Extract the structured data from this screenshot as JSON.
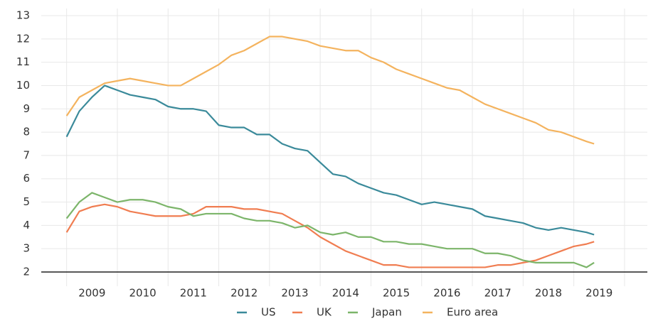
{
  "chart_data": {
    "type": "line",
    "x": [
      2009.0,
      2009.25,
      2009.5,
      2009.75,
      2010.0,
      2010.25,
      2010.5,
      2010.75,
      2011.0,
      2011.25,
      2011.5,
      2011.75,
      2012.0,
      2012.25,
      2012.5,
      2012.75,
      2013.0,
      2013.25,
      2013.5,
      2013.75,
      2014.0,
      2014.25,
      2014.5,
      2014.75,
      2015.0,
      2015.25,
      2015.5,
      2015.75,
      2016.0,
      2016.25,
      2016.5,
      2016.75,
      2017.0,
      2017.25,
      2017.5,
      2017.75,
      2018.0,
      2018.25,
      2018.5,
      2018.75,
      2019.0,
      2019.25,
      2019.4
    ],
    "series": [
      {
        "name": "US",
        "color": "#3a8a9a",
        "values": [
          7.8,
          8.9,
          9.5,
          10.0,
          9.8,
          9.6,
          9.5,
          9.4,
          9.1,
          9.0,
          9.0,
          8.9,
          8.3,
          8.2,
          8.2,
          7.9,
          7.9,
          7.5,
          7.3,
          7.2,
          6.7,
          6.2,
          6.1,
          5.8,
          5.6,
          5.4,
          5.3,
          5.1,
          4.9,
          5.0,
          4.9,
          4.8,
          4.7,
          4.4,
          4.3,
          4.2,
          4.1,
          3.9,
          3.8,
          3.9,
          3.8,
          3.7,
          3.6
        ]
      },
      {
        "name": "UK",
        "color": "#f07d51",
        "values": [
          3.7,
          4.6,
          4.8,
          4.9,
          4.8,
          4.6,
          4.5,
          4.4,
          4.4,
          4.4,
          4.5,
          4.8,
          4.8,
          4.8,
          4.7,
          4.7,
          4.6,
          4.5,
          4.2,
          3.9,
          3.5,
          3.2,
          2.9,
          2.7,
          2.5,
          2.3,
          2.3,
          2.2,
          2.2,
          2.2,
          2.2,
          2.2,
          2.2,
          2.2,
          2.3,
          2.3,
          2.4,
          2.5,
          2.7,
          2.9,
          3.1,
          3.2,
          3.3
        ]
      },
      {
        "name": "Japan",
        "color": "#7cb56a",
        "values": [
          4.3,
          5.0,
          5.4,
          5.2,
          5.0,
          5.1,
          5.1,
          5.0,
          4.8,
          4.7,
          4.4,
          4.5,
          4.5,
          4.5,
          4.3,
          4.2,
          4.2,
          4.1,
          3.9,
          4.0,
          3.7,
          3.6,
          3.7,
          3.5,
          3.5,
          3.3,
          3.3,
          3.2,
          3.2,
          3.1,
          3.0,
          3.0,
          3.0,
          2.8,
          2.8,
          2.7,
          2.5,
          2.4,
          2.4,
          2.4,
          2.4,
          2.2,
          2.4
        ]
      },
      {
        "name": "Euro area",
        "color": "#f4b35e",
        "values": [
          8.7,
          9.5,
          9.8,
          10.1,
          10.2,
          10.3,
          10.2,
          10.1,
          10.0,
          10.0,
          10.3,
          10.6,
          10.9,
          11.3,
          11.5,
          11.8,
          12.1,
          12.1,
          12.0,
          11.9,
          11.7,
          11.6,
          11.5,
          11.5,
          11.2,
          11.0,
          10.7,
          10.5,
          10.3,
          10.1,
          9.9,
          9.8,
          9.5,
          9.2,
          9.0,
          8.8,
          8.6,
          8.4,
          8.1,
          8.0,
          7.8,
          7.6,
          7.5
        ]
      }
    ],
    "xlim": [
      2008.5,
      2020.45
    ],
    "xticks": [
      {
        "value": 2009.5,
        "label": "2009"
      },
      {
        "value": 2010.5,
        "label": "2010"
      },
      {
        "value": 2011.5,
        "label": "2011"
      },
      {
        "value": 2012.5,
        "label": "2012"
      },
      {
        "value": 2013.5,
        "label": "2013"
      },
      {
        "value": 2014.5,
        "label": "2014"
      },
      {
        "value": 2015.5,
        "label": "2015"
      },
      {
        "value": 2016.5,
        "label": "2016"
      },
      {
        "value": 2017.5,
        "label": "2017"
      },
      {
        "value": 2018.5,
        "label": "2018"
      },
      {
        "value": 2019.5,
        "label": "2019"
      }
    ],
    "xgrid": [
      2009,
      2010,
      2011,
      2012,
      2013,
      2014,
      2015,
      2016,
      2017,
      2018,
      2019,
      2020
    ],
    "ylim": [
      2,
      13
    ],
    "yticks": [
      2,
      3,
      4,
      5,
      6,
      7,
      8,
      9,
      10,
      11,
      12,
      13
    ],
    "grid": true,
    "legend": "bottom"
  }
}
